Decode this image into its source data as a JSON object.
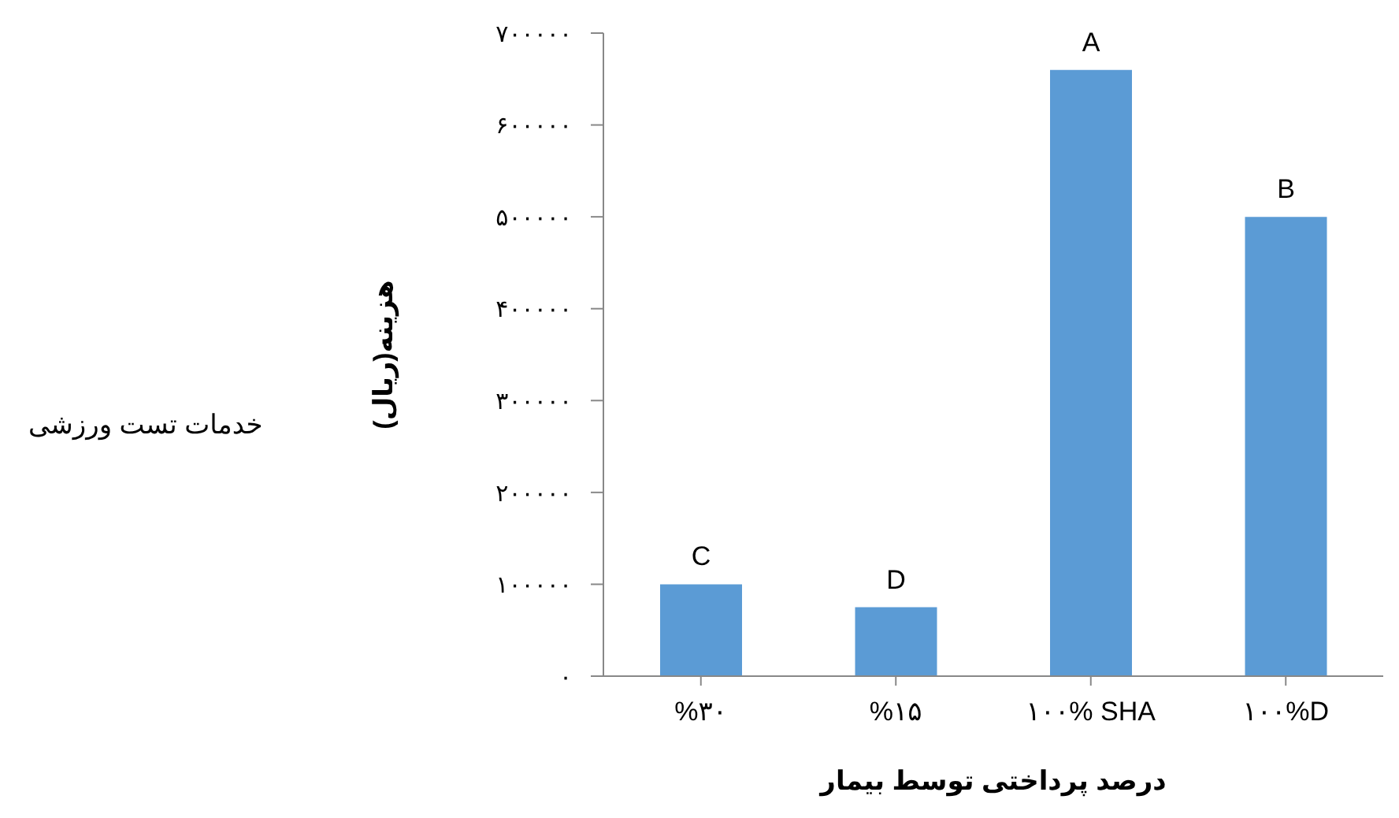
{
  "chart_data": {
    "type": "bar",
    "xlabel": "درصد پرداختی توسط بیمار",
    "ylabel": "هزینه(ریال)",
    "annotations": [
      "خدمات تست ورزشی"
    ],
    "categories": [
      "%۳۰",
      "%۱۵",
      "۱۰۰% SHA",
      "۱۰۰%D"
    ],
    "values": [
      100000,
      75000,
      660000,
      500000
    ],
    "value_labels": [
      "C",
      "D",
      "A",
      "B"
    ],
    "color": "#5b9bd5",
    "ylim": [
      0,
      700000
    ],
    "yticks": [
      {
        "value": 0,
        "label": "۰"
      },
      {
        "value": 100000,
        "label": "۱۰۰۰۰۰"
      },
      {
        "value": 200000,
        "label": "۲۰۰۰۰۰"
      },
      {
        "value": 300000,
        "label": "۳۰۰۰۰۰"
      },
      {
        "value": 400000,
        "label": "۴۰۰۰۰۰"
      },
      {
        "value": 500000,
        "label": "۵۰۰۰۰۰"
      },
      {
        "value": 600000,
        "label": "۶۰۰۰۰۰"
      },
      {
        "value": 700000,
        "label": "۷۰۰۰۰۰"
      }
    ],
    "grid": false,
    "legend": false
  }
}
